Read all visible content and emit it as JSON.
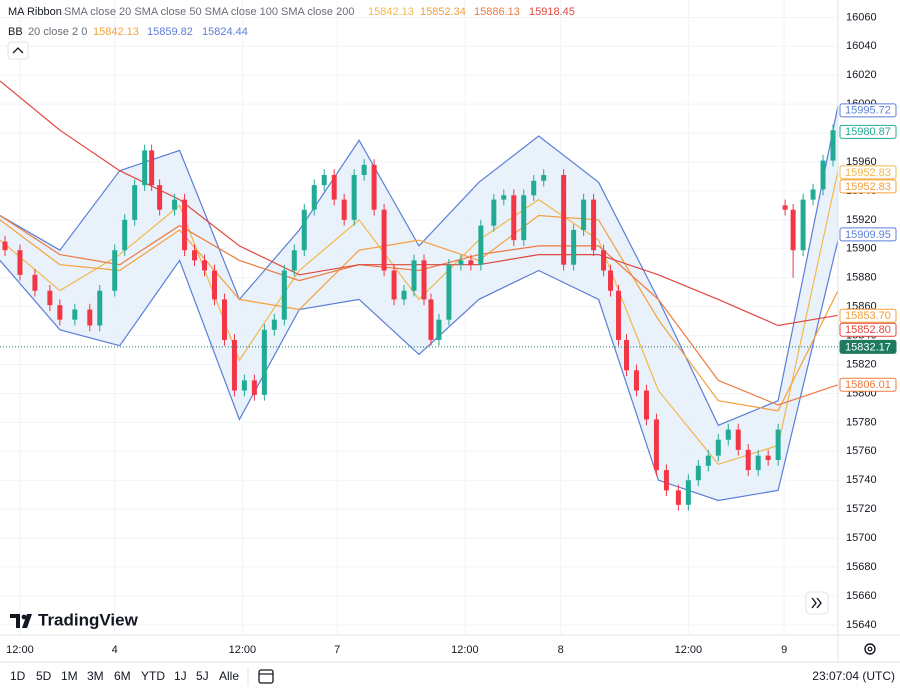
{
  "chart_data": {
    "type": "candlestick",
    "legend": [
      {
        "name": "MA Ribbon",
        "params": "SMA close 20 SMA close 50 SMA close 100 SMA close 200",
        "values": [
          15842.13,
          15852.34,
          15886.13,
          15918.45
        ],
        "colors": [
          "#f2b84b",
          "#f5a03c",
          "#ee7a3e",
          "#e0483f"
        ]
      },
      {
        "name": "BB",
        "params": "20 close 2 0",
        "values": [
          15842.13,
          15859.82,
          15824.44
        ],
        "colors": [
          "#f5a03c",
          "#5b7fd6",
          "#5b7fd6"
        ]
      }
    ],
    "xlim": [
      0,
      84
    ],
    "xticks": [
      {
        "value": 2,
        "label": "12:00"
      },
      {
        "value": 11.5,
        "label": "4"
      },
      {
        "value": 24.3,
        "label": "12:00"
      },
      {
        "value": 33.8,
        "label": "7"
      },
      {
        "value": 46.6,
        "label": "12:00"
      },
      {
        "value": 56.2,
        "label": "8"
      },
      {
        "value": 69,
        "label": "12:00"
      },
      {
        "value": 78.6,
        "label": "9"
      }
    ],
    "ylim": [
      15633,
      16072
    ],
    "yticks": [
      15640,
      15660,
      15680,
      15700,
      15720,
      15740,
      15760,
      15780,
      15800,
      15820,
      15840,
      15860,
      15880,
      15900,
      15920,
      15940,
      15960,
      15980,
      16000,
      16020,
      16040,
      16060
    ],
    "grid": true,
    "up_color": "#22ab94",
    "down_color": "#f23645",
    "x": [
      0.5,
      2,
      3.5,
      5,
      6,
      7.5,
      9,
      10,
      11.5,
      12.5,
      13.5,
      14.5,
      15.2,
      16,
      17.5,
      18.5,
      19.5,
      20.5,
      21.5,
      22.5,
      23.5,
      24.5,
      25.5,
      26.5,
      27.5,
      28.5,
      29.5,
      30.5,
      31.5,
      32.5,
      33.5,
      34.5,
      35.5,
      36.5,
      37.5,
      38.5,
      39.5,
      40.5,
      41.5,
      42.5,
      43.2,
      44,
      45,
      46.2,
      47.2,
      48.2,
      49.5,
      50.5,
      51.5,
      52.5,
      53.5,
      54.5,
      56.5,
      57.5,
      58.5,
      59.5,
      60.5,
      61.2,
      62,
      62.8,
      63.8,
      64.8,
      65.8,
      66.8,
      68,
      69,
      70,
      71,
      72,
      73,
      74,
      75,
      76,
      77,
      78,
      78.7,
      79.5,
      80.5,
      81.5,
      82.5,
      83.5
    ],
    "open": [
      15905,
      15899,
      15882,
      15871,
      15861,
      15851,
      15858,
      15847,
      15871,
      15899,
      15920,
      15944,
      15968,
      15944,
      15927,
      15934,
      15899,
      15892,
      15885,
      15865,
      15837,
      15802,
      15809,
      15799,
      15844,
      15851,
      15885,
      15899,
      15927,
      15944,
      15951,
      15934,
      15920,
      15951,
      15958,
      15927,
      15885,
      15865,
      15871,
      15892,
      15865,
      15837,
      15851,
      15889,
      15892,
      15889,
      15916,
      15934,
      15937,
      15906,
      15937,
      15947,
      15951,
      15889,
      15913,
      15934,
      15899,
      15885,
      15871,
      15837,
      15816,
      15802,
      15782,
      15747,
      15733,
      15723,
      15740,
      15750,
      15757,
      15768,
      15775,
      15761,
      15747,
      15757,
      15754,
      15930,
      15927,
      15899,
      15934,
      15941,
      15961
    ],
    "high": [
      15909,
      15903,
      15886,
      15875,
      15865,
      15862,
      15862,
      15875,
      15903,
      15924,
      15948,
      15972,
      15972,
      15948,
      15938,
      15938,
      15903,
      15896,
      15889,
      15869,
      15841,
      15813,
      15813,
      15848,
      15855,
      15889,
      15903,
      15931,
      15948,
      15955,
      15955,
      15938,
      15955,
      15962,
      15962,
      15931,
      15889,
      15875,
      15896,
      15896,
      15869,
      15855,
      15893,
      15896,
      15896,
      15920,
      15938,
      15941,
      15941,
      15941,
      15951,
      15955,
      15955,
      15917,
      15938,
      15938,
      15903,
      15889,
      15875,
      15841,
      15820,
      15806,
      15786,
      15751,
      15737,
      15744,
      15754,
      15761,
      15772,
      15779,
      15779,
      15765,
      15761,
      15761,
      15779,
      15934,
      15931,
      15938,
      15945,
      15965,
      15986
    ],
    "low": [
      15895,
      15878,
      15867,
      15857,
      15847,
      15847,
      15843,
      15843,
      15867,
      15895,
      15916,
      15940,
      15940,
      15923,
      15923,
      15895,
      15888,
      15881,
      15861,
      15833,
      15798,
      15798,
      15795,
      15795,
      15840,
      15847,
      15881,
      15895,
      15923,
      15940,
      15930,
      15916,
      15916,
      15947,
      15923,
      15881,
      15861,
      15861,
      15867,
      15861,
      15833,
      15833,
      15847,
      15885,
      15885,
      15885,
      15912,
      15930,
      15902,
      15902,
      15933,
      15943,
      15885,
      15885,
      15909,
      15895,
      15881,
      15867,
      15833,
      15812,
      15798,
      15778,
      15743,
      15729,
      15719,
      15719,
      15736,
      15746,
      15753,
      15764,
      15757,
      15743,
      15743,
      15750,
      15750,
      15923,
      15880,
      15895,
      15930,
      15937,
      15957
    ],
    "close": [
      15899,
      15882,
      15871,
      15861,
      15851,
      15858,
      15847,
      15871,
      15899,
      15920,
      15944,
      15968,
      15944,
      15927,
      15934,
      15899,
      15892,
      15885,
      15865,
      15837,
      15802,
      15809,
      15799,
      15844,
      15851,
      15885,
      15899,
      15927,
      15944,
      15951,
      15934,
      15920,
      15951,
      15958,
      15927,
      15885,
      15865,
      15871,
      15892,
      15865,
      15837,
      15851,
      15889,
      15892,
      15889,
      15916,
      15934,
      15937,
      15906,
      15937,
      15947,
      15951,
      15889,
      15913,
      15934,
      15899,
      15885,
      15871,
      15837,
      15816,
      15802,
      15782,
      15747,
      15733,
      15723,
      15740,
      15750,
      15757,
      15768,
      15775,
      15761,
      15747,
      15757,
      15754,
      15775,
      15927,
      15899,
      15934,
      15941,
      15961,
      15982
    ],
    "line_x": [
      0,
      6,
      12,
      18,
      24,
      30,
      36,
      42,
      48,
      54,
      60,
      66,
      72,
      78,
      84
    ],
    "bollinger": {
      "color": "#5b7fd6",
      "fill": "#e3eefa",
      "upper": [
        15923,
        15899,
        15954,
        15968,
        15865,
        15913,
        15975,
        15902,
        15946,
        15978,
        15946,
        15865,
        15778,
        15795,
        15999
      ],
      "lower": [
        15892,
        15844,
        15833,
        15892,
        15782,
        15858,
        15865,
        15827,
        15865,
        15885,
        15865,
        15740,
        15726,
        15733,
        15906
      ]
    },
    "ma_lines": [
      {
        "color": "#f2b84b",
        "values": [
          15906,
          15871,
          15896,
          15930,
          15823,
          15885,
          15920,
          15865,
          15906,
          15934,
          15906,
          15802,
          15751,
          15764,
          15954
        ]
      },
      {
        "color": "#f5a03c",
        "values": [
          15920,
          15889,
          15885,
          15913,
          15865,
          15858,
          15899,
          15906,
          15892,
          15923,
          15920,
          15851,
          15795,
          15788,
          15871
        ]
      },
      {
        "color": "#ee7a3e",
        "values": [
          15923,
          15896,
          15889,
          15916,
          15892,
          15878,
          15889,
          15885,
          15896,
          15902,
          15902,
          15865,
          15809,
          15792,
          15806
        ]
      },
      {
        "color": "#e0483f",
        "values": [
          16016,
          15982,
          15954,
          15934,
          15902,
          15882,
          15889,
          15889,
          15889,
          15896,
          15896,
          15882,
          15865,
          15847,
          15854
        ]
      }
    ],
    "price_labels": [
      {
        "value": 15995.72,
        "label": "15995.72",
        "color": "#5b7fd6"
      },
      {
        "value": 15980.87,
        "label": "15980.87",
        "color": "#22ab94"
      },
      {
        "value": 15952.83,
        "label": "15952.83",
        "color": "#f2b84b"
      },
      {
        "value": 15952.83,
        "label": "15952.83",
        "color": "#f5a03c"
      },
      {
        "value": 15909.95,
        "label": "15909.95",
        "color": "#5b7fd6"
      },
      {
        "value": 15853.7,
        "label": "15853.70",
        "color": "#f5a03c"
      },
      {
        "value": 15852.8,
        "label": "15852.80",
        "color": "#e0483f"
      },
      {
        "value": 15832.17,
        "label": "15832.17",
        "color": "#1e7a5e",
        "filled": true,
        "line": "dashed"
      },
      {
        "value": 15806.01,
        "label": "15806.01",
        "color": "#ee7a3e"
      }
    ]
  },
  "branding": "TradingView",
  "toolbar": {
    "ranges": [
      "1D",
      "5D",
      "1M",
      "3M",
      "6M",
      "YTD",
      "1J",
      "5J",
      "Alle"
    ],
    "clock": "23:07:04 (UTC)"
  }
}
